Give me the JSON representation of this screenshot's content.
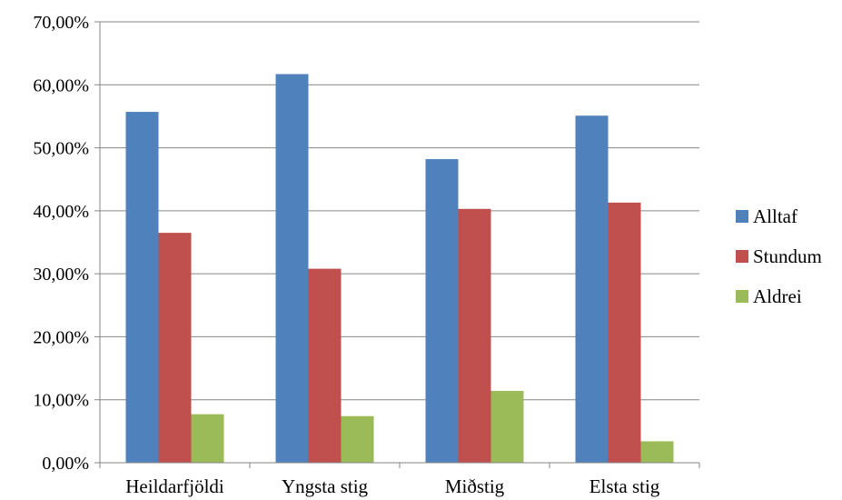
{
  "chart_data": {
    "type": "bar",
    "title": "",
    "xlabel": "",
    "ylabel": "",
    "categories": [
      "Heildarfjöldi",
      "Yngsta stig",
      "Miðstig",
      "Elsta stig"
    ],
    "series": [
      {
        "name": "Alltaf",
        "color": "#4F81BD",
        "values": [
          55.7,
          61.7,
          48.2,
          55.1
        ]
      },
      {
        "name": "Stundum",
        "color": "#C0504D",
        "values": [
          36.5,
          30.8,
          40.3,
          41.3
        ]
      },
      {
        "name": "Aldrei",
        "color": "#9BBB59",
        "values": [
          7.7,
          7.4,
          11.4,
          3.4
        ]
      }
    ],
    "ylim": [
      0,
      70
    ],
    "yticks": [
      0,
      10,
      20,
      30,
      40,
      50,
      60,
      70
    ],
    "ytick_labels": [
      "0,00%",
      "10,00%",
      "20,00%",
      "30,00%",
      "40,00%",
      "50,00%",
      "60,00%",
      "70,00%"
    ],
    "grid": true,
    "legend": "right"
  }
}
